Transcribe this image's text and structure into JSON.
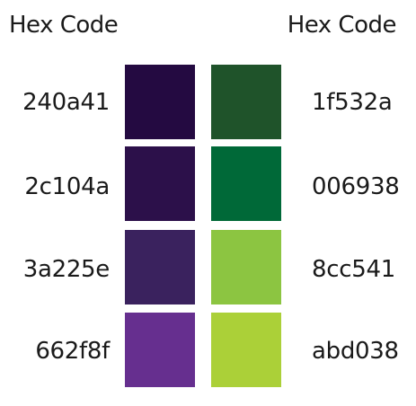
{
  "headers": {
    "left": "Hex Code",
    "right": "Hex Code"
  },
  "swatches": {
    "left": [
      {
        "code": "240a41",
        "color": "#240a41"
      },
      {
        "code": "2c104a",
        "color": "#2c104a"
      },
      {
        "code": "3a225e",
        "color": "#3a225e"
      },
      {
        "code": "662f8f",
        "color": "#662f8f"
      }
    ],
    "right": [
      {
        "code": "1f532a",
        "color": "#1f532a"
      },
      {
        "code": "006938",
        "color": "#006938"
      },
      {
        "code": "8cc541",
        "color": "#8cc541"
      },
      {
        "code": "abd038",
        "color": "#abd038"
      }
    ]
  }
}
